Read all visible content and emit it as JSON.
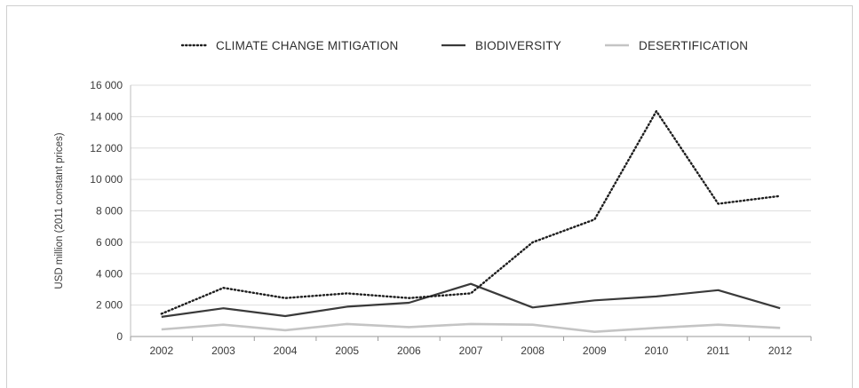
{
  "chart_data": {
    "type": "line",
    "categories": [
      "2002",
      "2003",
      "2004",
      "2005",
      "2006",
      "2007",
      "2008",
      "2009",
      "2010",
      "2011",
      "2012"
    ],
    "series": [
      {
        "name": "CLIMATE CHANGE MITIGATION",
        "style": "dotted",
        "color": "#1e1e1e",
        "values": [
          1450,
          3100,
          2450,
          2750,
          2450,
          2750,
          6000,
          7450,
          14350,
          8450,
          8950
        ]
      },
      {
        "name": "BIODIVERSITY",
        "style": "solid",
        "color": "#3a3a3a",
        "values": [
          1250,
          1800,
          1300,
          1900,
          2150,
          3350,
          1850,
          2300,
          2550,
          2950,
          1800
        ]
      },
      {
        "name": "DESERTIFICATION",
        "style": "solid",
        "color": "#c4c4c4",
        "values": [
          450,
          750,
          400,
          800,
          600,
          800,
          750,
          300,
          550,
          750,
          550
        ]
      }
    ],
    "ylabel": "USD million (2011 constant prices)",
    "xlabel": "",
    "ylim": [
      0,
      16000
    ],
    "yticks": [
      "0",
      "2 000",
      "4 000",
      "6 000",
      "8 000",
      "10 000",
      "12 000",
      "14 000",
      "16 000"
    ],
    "grid": true,
    "legend_position": "top"
  }
}
